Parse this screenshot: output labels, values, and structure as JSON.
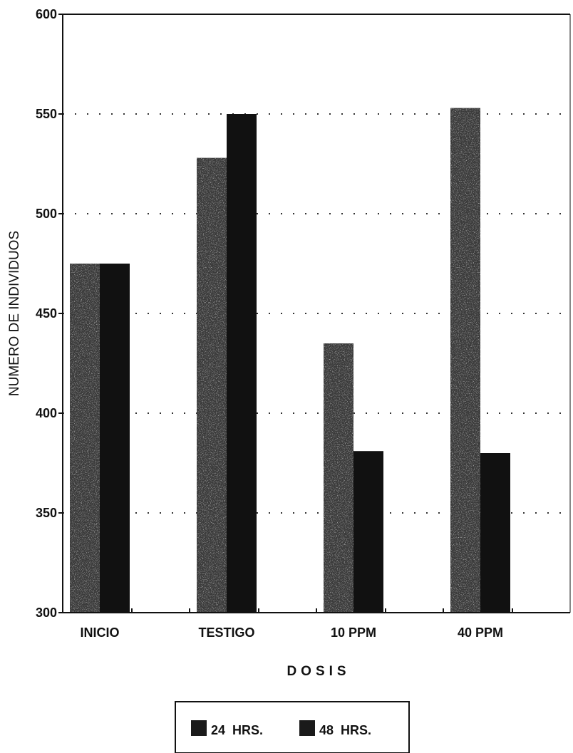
{
  "chart_data": {
    "type": "bar",
    "categories": [
      "INICIO",
      "TESTIGO",
      "10 PPM",
      "40 PPM"
    ],
    "series": [
      {
        "name": "24  HRS.",
        "values": [
          475,
          528,
          435,
          553
        ]
      },
      {
        "name": "48  HRS.",
        "values": [
          475,
          550,
          381,
          380
        ]
      }
    ],
    "xlabel": "DOSIS",
    "ylabel": "NUMERO DE INDIVIDUOS",
    "ylim": [
      300,
      600
    ],
    "yticks": [
      "300",
      "350",
      "400",
      "450",
      "500",
      "550",
      "600"
    ],
    "grid": "dotted horizontal",
    "legend_position": "bottom-center",
    "colors": {
      "series_24": "#3a3a3a",
      "series_48": "#111111",
      "axis": "#111111"
    }
  }
}
